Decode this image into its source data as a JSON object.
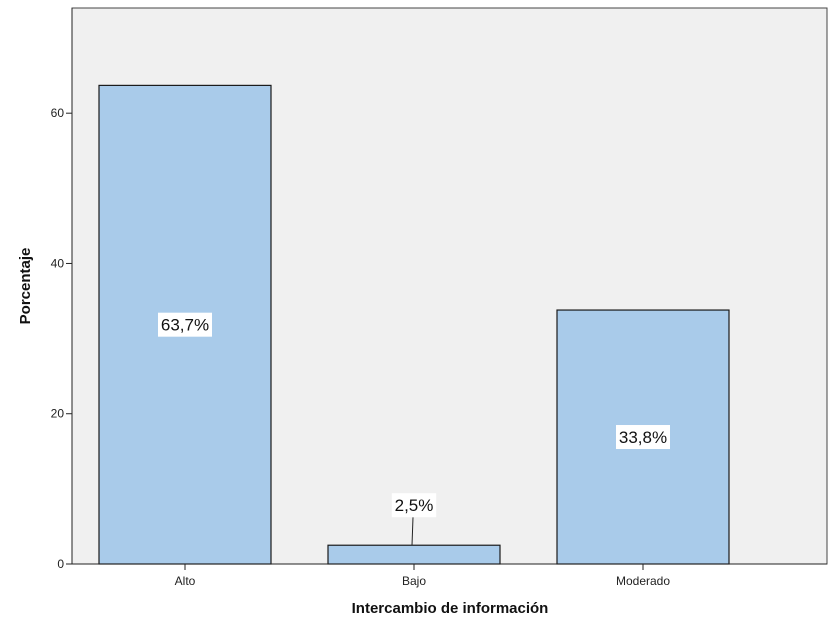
{
  "chart_data": {
    "type": "bar",
    "title": "",
    "xlabel": "Intercambio de información",
    "ylabel": "Porcentaje",
    "categories": [
      "Alto",
      "Bajo",
      "Moderado"
    ],
    "values": [
      63.7,
      2.5,
      33.8
    ],
    "data_labels": [
      "63,7%",
      "2,5%",
      "33,8%"
    ],
    "yticks": [
      0,
      20,
      40,
      60
    ],
    "ytick_labels": [
      "0",
      "20",
      "40",
      "60"
    ],
    "ylim": [
      0,
      74
    ],
    "grid": false,
    "legend": "none",
    "colors": {
      "bar_fill": "#a9cbea",
      "bar_stroke": "#1a1a1a",
      "plot_background": "#f0f0f0",
      "label_background": "#ffffff"
    }
  }
}
